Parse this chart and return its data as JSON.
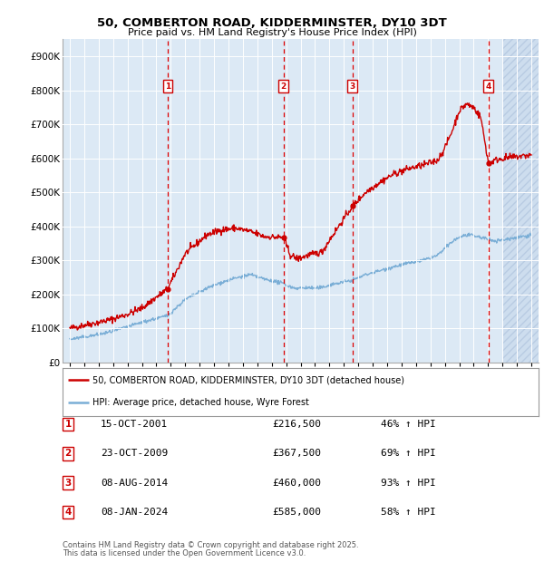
{
  "title": "50, COMBERTON ROAD, KIDDERMINSTER, DY10 3DT",
  "subtitle": "Price paid vs. HM Land Registry's House Price Index (HPI)",
  "ylim": [
    0,
    950000
  ],
  "yticks": [
    0,
    100000,
    200000,
    300000,
    400000,
    500000,
    600000,
    700000,
    800000,
    900000
  ],
  "ytick_labels": [
    "£0",
    "£100K",
    "£200K",
    "£300K",
    "£400K",
    "£500K",
    "£600K",
    "£700K",
    "£800K",
    "£900K"
  ],
  "xlim_start": 1994.5,
  "xlim_end": 2027.5,
  "plot_bg_color": "#dce9f5",
  "grid_color": "#ffffff",
  "red_line_color": "#cc0000",
  "blue_line_color": "#7aaed6",
  "transaction_line_color": "#dd0000",
  "transaction_box_color": "#cc0000",
  "transactions": [
    {
      "num": 1,
      "date": "15-OCT-2001",
      "price": 216500,
      "hpi_pct": "46%",
      "x_year": 2001.79
    },
    {
      "num": 2,
      "date": "23-OCT-2009",
      "price": 367500,
      "hpi_pct": "69%",
      "x_year": 2009.81
    },
    {
      "num": 3,
      "date": "08-AUG-2014",
      "price": 460000,
      "hpi_pct": "93%",
      "x_year": 2014.6
    },
    {
      "num": 4,
      "date": "08-JAN-2024",
      "price": 585000,
      "hpi_pct": "58%",
      "x_year": 2024.03
    }
  ],
  "legend_line1": "50, COMBERTON ROAD, KIDDERMINSTER, DY10 3DT (detached house)",
  "legend_line2": "HPI: Average price, detached house, Wyre Forest",
  "footer1": "Contains HM Land Registry data © Crown copyright and database right 2025.",
  "footer2": "This data is licensed under the Open Government Licence v3.0.",
  "future_hatch_start": 2025.0,
  "red_anchors": [
    [
      1995.0,
      100000
    ],
    [
      1996.0,
      110000
    ],
    [
      1997.0,
      118000
    ],
    [
      1998.0,
      128000
    ],
    [
      1999.0,
      142000
    ],
    [
      2000.0,
      160000
    ],
    [
      2001.79,
      216500
    ],
    [
      2003.0,
      320000
    ],
    [
      2004.5,
      375000
    ],
    [
      2005.5,
      390000
    ],
    [
      2006.5,
      395000
    ],
    [
      2007.5,
      385000
    ],
    [
      2008.5,
      370000
    ],
    [
      2009.81,
      367500
    ],
    [
      2010.3,
      315000
    ],
    [
      2010.8,
      305000
    ],
    [
      2011.5,
      315000
    ],
    [
      2012.0,
      320000
    ],
    [
      2012.5,
      325000
    ],
    [
      2013.0,
      360000
    ],
    [
      2014.6,
      460000
    ],
    [
      2015.5,
      500000
    ],
    [
      2016.5,
      530000
    ],
    [
      2017.5,
      555000
    ],
    [
      2018.5,
      570000
    ],
    [
      2019.5,
      580000
    ],
    [
      2020.5,
      595000
    ],
    [
      2021.0,
      630000
    ],
    [
      2021.5,
      680000
    ],
    [
      2022.0,
      740000
    ],
    [
      2022.5,
      760000
    ],
    [
      2023.0,
      750000
    ],
    [
      2023.5,
      720000
    ],
    [
      2024.03,
      585000
    ],
    [
      2024.5,
      595000
    ],
    [
      2025.0,
      600000
    ],
    [
      2026.0,
      605000
    ],
    [
      2027.0,
      610000
    ]
  ],
  "blue_anchors": [
    [
      1995.0,
      68000
    ],
    [
      1996.0,
      75000
    ],
    [
      1997.0,
      82000
    ],
    [
      1998.0,
      92000
    ],
    [
      1999.0,
      105000
    ],
    [
      2000.0,
      118000
    ],
    [
      2001.79,
      138000
    ],
    [
      2003.0,
      185000
    ],
    [
      2004.5,
      218000
    ],
    [
      2005.5,
      235000
    ],
    [
      2006.5,
      248000
    ],
    [
      2007.5,
      258000
    ],
    [
      2008.5,
      245000
    ],
    [
      2009.81,
      232000
    ],
    [
      2010.3,
      222000
    ],
    [
      2010.8,
      218000
    ],
    [
      2011.5,
      220000
    ],
    [
      2012.0,
      218000
    ],
    [
      2012.5,
      220000
    ],
    [
      2013.0,
      228000
    ],
    [
      2014.6,
      242000
    ],
    [
      2015.5,
      258000
    ],
    [
      2016.5,
      270000
    ],
    [
      2017.5,
      282000
    ],
    [
      2018.5,
      292000
    ],
    [
      2019.5,
      300000
    ],
    [
      2020.5,
      315000
    ],
    [
      2021.0,
      335000
    ],
    [
      2021.5,
      355000
    ],
    [
      2022.0,
      368000
    ],
    [
      2022.5,
      375000
    ],
    [
      2023.0,
      372000
    ],
    [
      2023.5,
      368000
    ],
    [
      2024.03,
      362000
    ],
    [
      2024.5,
      358000
    ],
    [
      2025.0,
      360000
    ],
    [
      2026.0,
      368000
    ],
    [
      2027.0,
      375000
    ]
  ]
}
